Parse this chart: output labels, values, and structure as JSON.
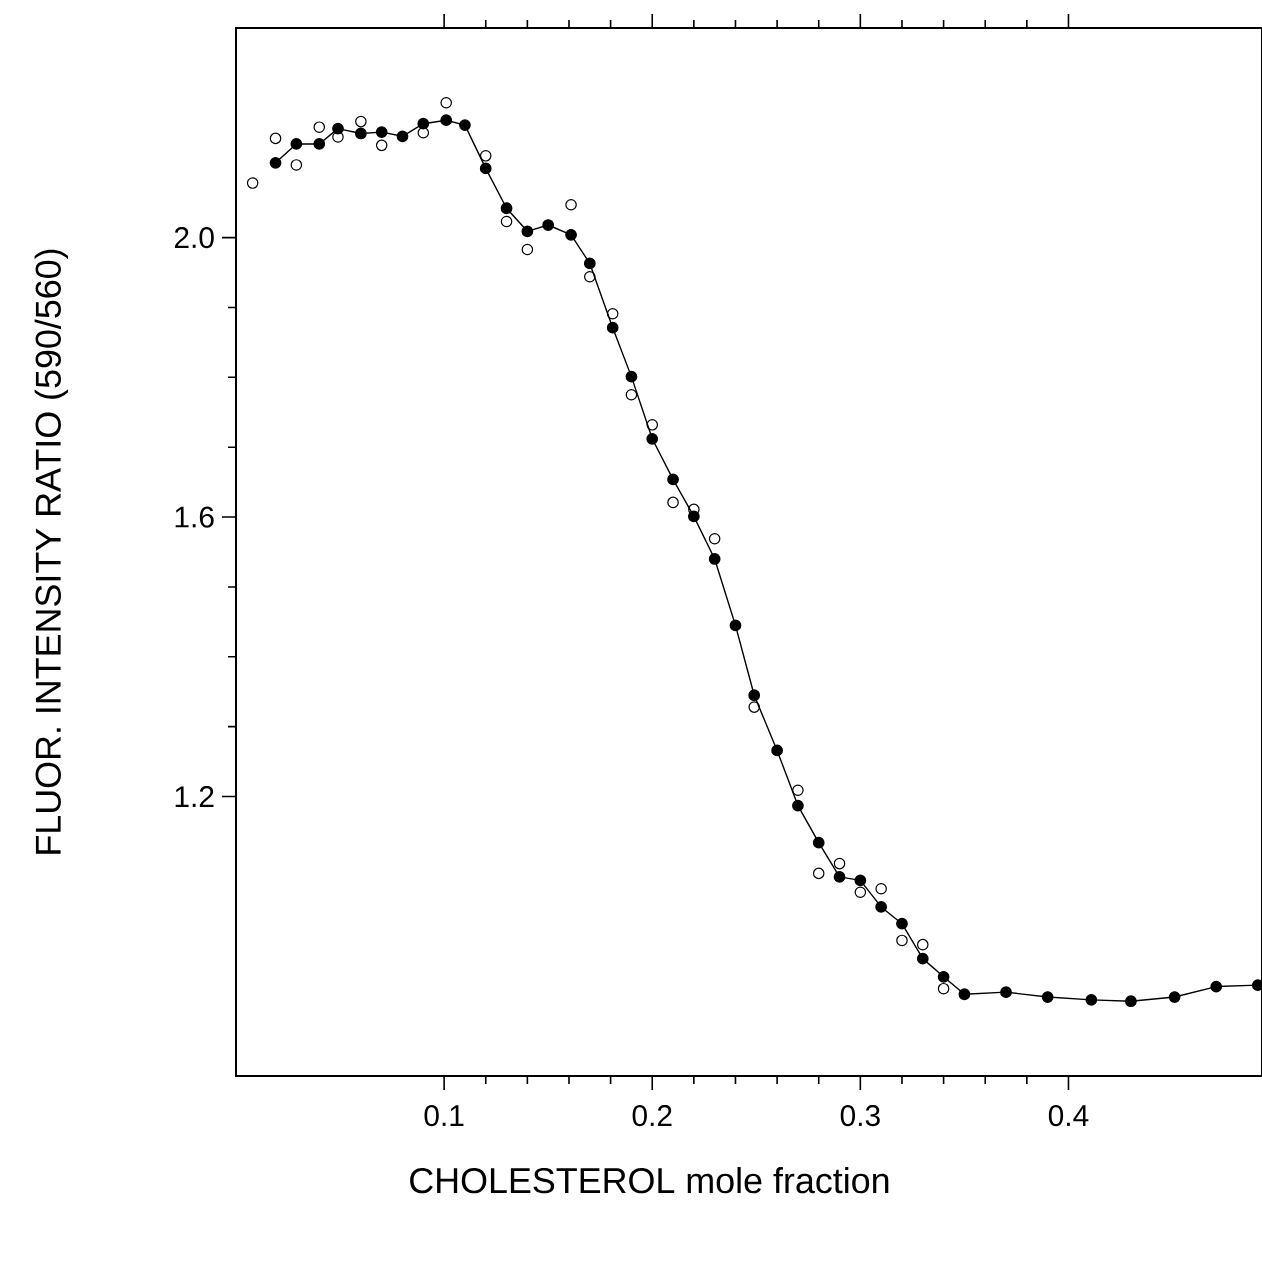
{
  "chart_data": {
    "type": "line",
    "xlabel": "CHOLESTEROL  mole fraction",
    "ylabel": "FLUOR. INTENSITY RATIO (590/560)",
    "xlim": [
      0,
      0.493
    ],
    "ylim": [
      0.8,
      2.3
    ],
    "xticks": [
      0.1,
      0.2,
      0.3,
      0.4
    ],
    "yticks": [
      1.2,
      1.6,
      {
        "value": 2.0,
        "label": "2.0"
      }
    ],
    "marker": "circle",
    "line_style": "solid",
    "series": [
      {
        "color": "#000000",
        "x": [
          0.019,
          0.029,
          0.04,
          0.049,
          0.06,
          0.07,
          0.08,
          0.09,
          0.101,
          0.11,
          0.12,
          0.13,
          0.14,
          0.15,
          0.161,
          0.17,
          0.181,
          0.19,
          0.2,
          0.21,
          0.22,
          0.23,
          0.24,
          0.249,
          0.26,
          0.27,
          0.28,
          0.29,
          0.3,
          0.31,
          0.32,
          0.33,
          0.34,
          0.35,
          0.37,
          0.39,
          0.411,
          0.43,
          0.451,
          0.471,
          0.491
        ],
        "values": [
          2.107,
          2.134,
          2.134,
          2.156,
          2.149,
          2.151,
          2.145,
          2.163,
          2.168,
          2.161,
          2.099,
          2.042,
          2.009,
          2.018,
          2.004,
          1.963,
          1.871,
          1.801,
          1.712,
          1.654,
          1.601,
          1.54,
          1.445,
          1.345,
          1.266,
          1.187,
          1.134,
          1.085,
          1.08,
          1.042,
          1.018,
          0.968,
          0.942,
          0.917,
          0.92,
          0.913,
          0.909,
          0.907,
          0.913,
          0.928,
          0.93
        ]
      },
      {
        "type": "scatter",
        "color": "#000000",
        "x": [
          0.008,
          0.019,
          0.029,
          0.04,
          0.049,
          0.06,
          0.07,
          0.09,
          0.101,
          0.12,
          0.13,
          0.14,
          0.161,
          0.17,
          0.181,
          0.19,
          0.2,
          0.21,
          0.22,
          0.23,
          0.249,
          0.27,
          0.28,
          0.29,
          0.3,
          0.31,
          0.32,
          0.33,
          0.34
        ],
        "values": [
          2.078,
          2.142,
          2.104,
          2.158,
          2.144,
          2.166,
          2.132,
          2.15,
          2.193,
          2.117,
          2.023,
          1.983,
          2.047,
          1.944,
          1.891,
          1.775,
          1.732,
          1.621,
          1.611,
          1.569,
          1.328,
          1.209,
          1.09,
          1.104,
          1.063,
          1.068,
          0.994,
          0.988,
          0.925
        ]
      }
    ]
  }
}
